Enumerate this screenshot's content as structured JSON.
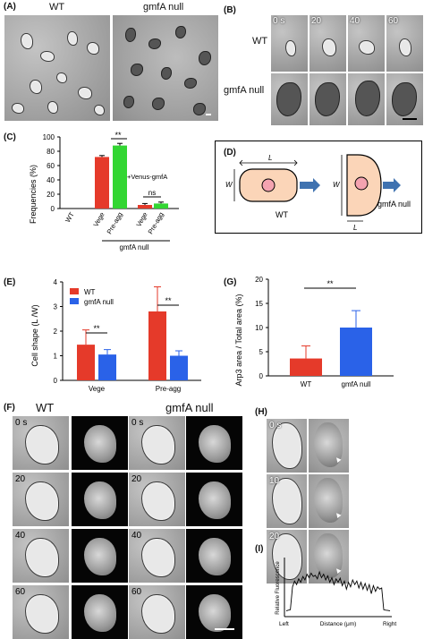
{
  "panel_a": {
    "label": "(A)",
    "wt": "WT",
    "null": "gmfA null"
  },
  "panel_b": {
    "label": "(B)",
    "times": [
      "0 s",
      "20",
      "40",
      "60"
    ],
    "rows": [
      "WT",
      "gmfA null"
    ]
  },
  "panel_c": {
    "label": "(C)",
    "ylabel": "Frequencies (%)",
    "yticks": [
      "0",
      "20",
      "40",
      "60",
      "80",
      "100"
    ],
    "venus": "+Venus-gmfA",
    "gmfa_null": "gmfA null",
    "sig1": "**",
    "sig2": "ns"
  },
  "panel_d": {
    "label": "(D)",
    "L": "L",
    "W": "W",
    "wt": "WT",
    "null": "gmfA null"
  },
  "panel_e": {
    "label": "(E)",
    "ylabel": "Cell shape (L /W)",
    "yticks": [
      "0",
      "1",
      "2",
      "3",
      "4"
    ],
    "sig": "**"
  },
  "panel_g": {
    "label": "(G)",
    "ylabel": "Arp3 area / Total area (%)",
    "yticks": [
      "0",
      "5",
      "10",
      "15",
      "20"
    ],
    "sig": "**"
  },
  "panel_f": {
    "label": "(F)",
    "wt": "WT",
    "null": "gmfA null",
    "times": [
      "0 s",
      "20",
      "40",
      "60"
    ]
  },
  "panel_h": {
    "label": "(H)",
    "times": [
      "0 s",
      "10",
      "20"
    ]
  },
  "panel_i": {
    "label": "(I)",
    "ylabel": "Relative Fluorescence",
    "xlabel": "Distance (μm)",
    "left": "Left",
    "right": "Right"
  },
  "chart_data": [
    {
      "type": "bar",
      "panel": "C",
      "ylabel": "Frequencies (%)",
      "ylim": [
        0,
        100
      ],
      "categories": [
        "WT",
        "Vege",
        "Pre-agg",
        "Vege",
        "Pre-agg"
      ],
      "values": [
        0,
        72,
        88,
        5,
        7
      ],
      "errors": [
        0,
        2,
        3,
        2,
        2
      ],
      "colors": [
        "#e53a2a",
        "#e53a2a",
        "#33d633",
        "#e53a2a",
        "#33d633"
      ]
    },
    {
      "type": "bar",
      "panel": "E",
      "ylabel": "Cell shape (L /W)",
      "ylim": [
        0,
        4
      ],
      "categories": [
        "Vege",
        "Pre-agg"
      ],
      "series": [
        {
          "name": "WT",
          "values": [
            1.45,
            2.8
          ],
          "errors": [
            0.6,
            1.0
          ],
          "color": "#e53a2a"
        },
        {
          "name": "gmfA null",
          "values": [
            1.05,
            1.0
          ],
          "errors": [
            0.2,
            0.2
          ],
          "color": "#2a62e8"
        }
      ],
      "legend": "top-left"
    },
    {
      "type": "bar",
      "panel": "G",
      "ylabel": "Arp3 area / Total area (%)",
      "ylim": [
        0,
        20
      ],
      "categories": [
        "WT",
        "gmfA null"
      ],
      "values": [
        3.6,
        10
      ],
      "errors": [
        2.6,
        3.5
      ],
      "colors": [
        "#e53a2a",
        "#2a62e8"
      ]
    },
    {
      "type": "line",
      "panel": "I",
      "ylabel": "Relative Fluorescence",
      "xlabel": "Distance (μm)",
      "ylim": [
        0,
        250
      ],
      "x": [
        0,
        2,
        4,
        6,
        8,
        10,
        12,
        14,
        16,
        18,
        20,
        22,
        24,
        26,
        28,
        30,
        32,
        34,
        36,
        38,
        40,
        42,
        44,
        46,
        48,
        50,
        52,
        54,
        56,
        58,
        60,
        62,
        64,
        66,
        68,
        70,
        72,
        74,
        76,
        78,
        80,
        82,
        84,
        86,
        88,
        90,
        92,
        94,
        96,
        98,
        100
      ],
      "values": [
        25,
        28,
        30,
        130,
        155,
        140,
        165,
        150,
        175,
        160,
        185,
        170,
        190,
        175,
        180,
        165,
        195,
        170,
        185,
        160,
        178,
        150,
        170,
        140,
        165,
        150,
        168,
        135,
        155,
        120,
        150,
        130,
        160,
        140,
        155,
        125,
        150,
        120,
        145,
        115,
        140,
        100,
        135,
        110,
        130,
        120,
        125,
        30,
        28,
        27,
        25
      ]
    }
  ]
}
